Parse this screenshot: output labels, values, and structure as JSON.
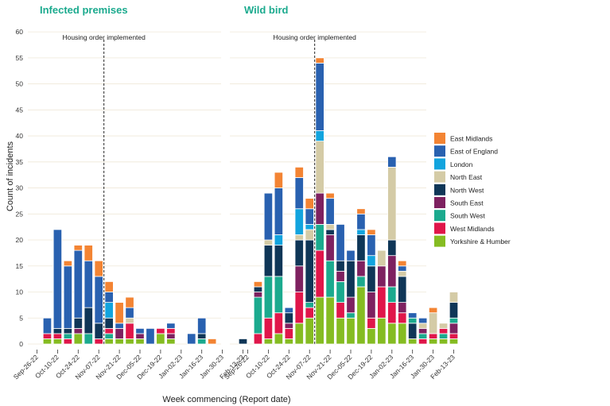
{
  "chart_data": {
    "type": "bar",
    "stacked": true,
    "ylabel": "Count of incidents",
    "xlabel": "Week commencing (Report date)",
    "ylim": [
      0,
      62
    ],
    "yticks": [
      0,
      5,
      10,
      15,
      20,
      25,
      30,
      35,
      40,
      45,
      50,
      55,
      60
    ],
    "grid": true,
    "legend_position": "right",
    "categories": [
      "Sep-26-22",
      "Oct-03-22",
      "Oct-10-22",
      "Oct-17-22",
      "Oct-24-22",
      "Oct-31-22",
      "Nov-07-22",
      "Nov-14-22",
      "Nov-21-22",
      "Nov-28-22",
      "Dec-05-22",
      "Dec-12-22",
      "Dec-19-22",
      "Dec-26-22",
      "Jan-02-23",
      "Jan-09-23",
      "Jan-16-23",
      "Jan-23-23",
      "Jan-30-23",
      "Feb-06-23",
      "Feb-13-23"
    ],
    "tick_labels": [
      "Sep-26-22",
      "Oct-10-22",
      "Oct-24-22",
      "Nov-07-22",
      "Nov-21-22",
      "Dec-05-22",
      "Dec-19-22",
      "Jan-02-23",
      "Jan-16-23",
      "Jan-30-23",
      "Feb-13-23"
    ],
    "regions": [
      "East Midlands",
      "East of England",
      "London",
      "North East",
      "North West",
      "South East",
      "South West",
      "West Midlands",
      "Yorkshire & Humber"
    ],
    "colors": {
      "East Midlands": "#F38433",
      "East of England": "#2961B0",
      "London": "#12A4DE",
      "North East": "#D4CBA6",
      "North West": "#0F3657",
      "South East": "#7E2160",
      "South West": "#1BAA8E",
      "West Midlands": "#E0164A",
      "Yorkshire & Humber": "#85BC22"
    },
    "panels": [
      {
        "title": "Infected premises",
        "annotation": "Housing order implemented",
        "vline_index": 7,
        "stacks": [
          [],
          [
            [
              "Yorkshire & Humber",
              1
            ],
            [
              "West Midlands",
              1
            ],
            [
              "East of England",
              3
            ]
          ],
          [
            [
              "Yorkshire & Humber",
              1
            ],
            [
              "West Midlands",
              1
            ],
            [
              "North West",
              1
            ],
            [
              "East of England",
              19
            ]
          ],
          [
            [
              "West Midlands",
              1
            ],
            [
              "South West",
              1
            ],
            [
              "North West",
              1
            ],
            [
              "East of England",
              12
            ],
            [
              "East Midlands",
              1
            ]
          ],
          [
            [
              "Yorkshire & Humber",
              2
            ],
            [
              "South East",
              1
            ],
            [
              "North West",
              2
            ],
            [
              "East of England",
              13
            ],
            [
              "East Midlands",
              1
            ]
          ],
          [
            [
              "South West",
              2
            ],
            [
              "North West",
              5
            ],
            [
              "East of England",
              9
            ],
            [
              "East Midlands",
              3
            ]
          ],
          [
            [
              "West Midlands",
              1
            ],
            [
              "North West",
              3
            ],
            [
              "East of England",
              9
            ],
            [
              "East Midlands",
              3
            ]
          ],
          [
            [
              "Yorkshire & Humber",
              1
            ],
            [
              "South West",
              1
            ],
            [
              "West Midlands",
              1
            ],
            [
              "North West",
              2
            ],
            [
              "London",
              3
            ],
            [
              "East of England",
              2
            ],
            [
              "East Midlands",
              2
            ]
          ],
          [
            [
              "Yorkshire & Humber",
              1
            ],
            [
              "South East",
              2
            ],
            [
              "East of England",
              1
            ],
            [
              "East Midlands",
              4
            ]
          ],
          [
            [
              "Yorkshire & Humber",
              1
            ],
            [
              "West Midlands",
              3
            ],
            [
              "North East",
              1
            ],
            [
              "East of England",
              2
            ],
            [
              "East Midlands",
              2
            ]
          ],
          [
            [
              "Yorkshire & Humber",
              1
            ],
            [
              "South East",
              1
            ],
            [
              "East of England",
              1
            ]
          ],
          [
            [
              "East of England",
              3
            ]
          ],
          [
            [
              "Yorkshire & Humber",
              2
            ],
            [
              "West Midlands",
              1
            ]
          ],
          [
            [
              "Yorkshire & Humber",
              1
            ],
            [
              "South East",
              1
            ],
            [
              "West Midlands",
              1
            ],
            [
              "East of England",
              1
            ]
          ],
          [],
          [
            [
              "East of England",
              2
            ]
          ],
          [
            [
              "South West",
              1
            ],
            [
              "North West",
              1
            ],
            [
              "East of England",
              3
            ]
          ],
          [
            [
              "East Midlands",
              1
            ]
          ],
          [],
          [],
          [
            [
              "North West",
              1
            ]
          ]
        ]
      },
      {
        "title": "Wild bird",
        "annotation": "Housing order implemented",
        "vline_index": 7,
        "stacks": [
          [],
          [
            [
              "West Midlands",
              2
            ],
            [
              "South West",
              7
            ],
            [
              "South East",
              1
            ],
            [
              "North West",
              1
            ],
            [
              "East Midlands",
              1
            ]
          ],
          [
            [
              "Yorkshire & Humber",
              1
            ],
            [
              "West Midlands",
              4
            ],
            [
              "South West",
              8
            ],
            [
              "North West",
              6
            ],
            [
              "North East",
              1
            ],
            [
              "East of England",
              9
            ]
          ],
          [
            [
              "Yorkshire & Humber",
              2
            ],
            [
              "West Midlands",
              4
            ],
            [
              "South West",
              7
            ],
            [
              "North West",
              6
            ],
            [
              "London",
              2
            ],
            [
              "East of England",
              9
            ],
            [
              "East Midlands",
              3
            ]
          ],
          [
            [
              "Yorkshire & Humber",
              1
            ],
            [
              "West Midlands",
              2
            ],
            [
              "South East",
              1
            ],
            [
              "North West",
              2
            ],
            [
              "East of England",
              1
            ]
          ],
          [
            [
              "Yorkshire & Humber",
              4
            ],
            [
              "West Midlands",
              6
            ],
            [
              "South East",
              5
            ],
            [
              "North West",
              5
            ],
            [
              "North East",
              1
            ],
            [
              "London",
              5
            ],
            [
              "East of England",
              6
            ],
            [
              "East Midlands",
              2
            ]
          ],
          [
            [
              "Yorkshire & Humber",
              5
            ],
            [
              "West Midlands",
              2
            ],
            [
              "South West",
              1
            ],
            [
              "North West",
              12
            ],
            [
              "North East",
              2
            ],
            [
              "London",
              1
            ],
            [
              "East of England",
              3
            ],
            [
              "East Midlands",
              2
            ]
          ],
          [
            [
              "Yorkshire & Humber",
              9
            ],
            [
              "West Midlands",
              9
            ],
            [
              "South West",
              5
            ],
            [
              "South East",
              6
            ],
            [
              "North East",
              10
            ],
            [
              "London",
              2
            ],
            [
              "East of England",
              13
            ],
            [
              "East Midlands",
              1
            ]
          ],
          [
            [
              "Yorkshire & Humber",
              9
            ],
            [
              "South West",
              7
            ],
            [
              "South East",
              5
            ],
            [
              "North West",
              1
            ],
            [
              "North East",
              1
            ],
            [
              "East of England",
              5
            ],
            [
              "East Midlands",
              1
            ]
          ],
          [
            [
              "Yorkshire & Humber",
              5
            ],
            [
              "West Midlands",
              3
            ],
            [
              "South West",
              4
            ],
            [
              "South East",
              2
            ],
            [
              "North West",
              2
            ],
            [
              "East of England",
              7
            ]
          ],
          [
            [
              "Yorkshire & Humber",
              5
            ],
            [
              "South West",
              1
            ],
            [
              "South East",
              3
            ],
            [
              "North West",
              7
            ],
            [
              "East of England",
              2
            ]
          ],
          [
            [
              "Yorkshire & Humber",
              11
            ],
            [
              "South West",
              2
            ],
            [
              "South East",
              3
            ],
            [
              "North West",
              5
            ],
            [
              "London",
              1
            ],
            [
              "East of England",
              3
            ],
            [
              "East Midlands",
              1
            ]
          ],
          [
            [
              "Yorkshire & Humber",
              3
            ],
            [
              "West Midlands",
              2
            ],
            [
              "South East",
              5
            ],
            [
              "North West",
              5
            ],
            [
              "London",
              2
            ],
            [
              "East of England",
              4
            ],
            [
              "East Midlands",
              1
            ]
          ],
          [
            [
              "Yorkshire & Humber",
              5
            ],
            [
              "West Midlands",
              6
            ],
            [
              "South East",
              4
            ],
            [
              "North East",
              3
            ]
          ],
          [
            [
              "Yorkshire & Humber",
              4
            ],
            [
              "West Midlands",
              4
            ],
            [
              "South West",
              3
            ],
            [
              "South East",
              6
            ],
            [
              "North West",
              3
            ],
            [
              "North East",
              14
            ],
            [
              "East of England",
              2
            ]
          ],
          [
            [
              "Yorkshire & Humber",
              4
            ],
            [
              "West Midlands",
              2
            ],
            [
              "South East",
              2
            ],
            [
              "North West",
              5
            ],
            [
              "North East",
              1
            ],
            [
              "East of England",
              1
            ],
            [
              "East Midlands",
              1
            ]
          ],
          [
            [
              "Yorkshire & Humber",
              1
            ],
            [
              "North West",
              3
            ],
            [
              "South West",
              1
            ],
            [
              "East of England",
              1
            ]
          ],
          [
            [
              "West Midlands",
              1
            ],
            [
              "South West",
              1
            ],
            [
              "South East",
              1
            ],
            [
              "North East",
              1
            ],
            [
              "East of England",
              1
            ]
          ],
          [
            [
              "Yorkshire & Humber",
              1
            ],
            [
              "West Midlands",
              1
            ],
            [
              "North East",
              4
            ],
            [
              "East Midlands",
              1
            ]
          ],
          [
            [
              "Yorkshire & Humber",
              1
            ],
            [
              "South West",
              1
            ],
            [
              "West Midlands",
              1
            ],
            [
              "North East",
              1
            ]
          ],
          [
            [
              "Yorkshire & Humber",
              1
            ],
            [
              "West Midlands",
              1
            ],
            [
              "South East",
              2
            ],
            [
              "South West",
              1
            ],
            [
              "North West",
              3
            ],
            [
              "North East",
              2
            ]
          ]
        ]
      }
    ]
  }
}
